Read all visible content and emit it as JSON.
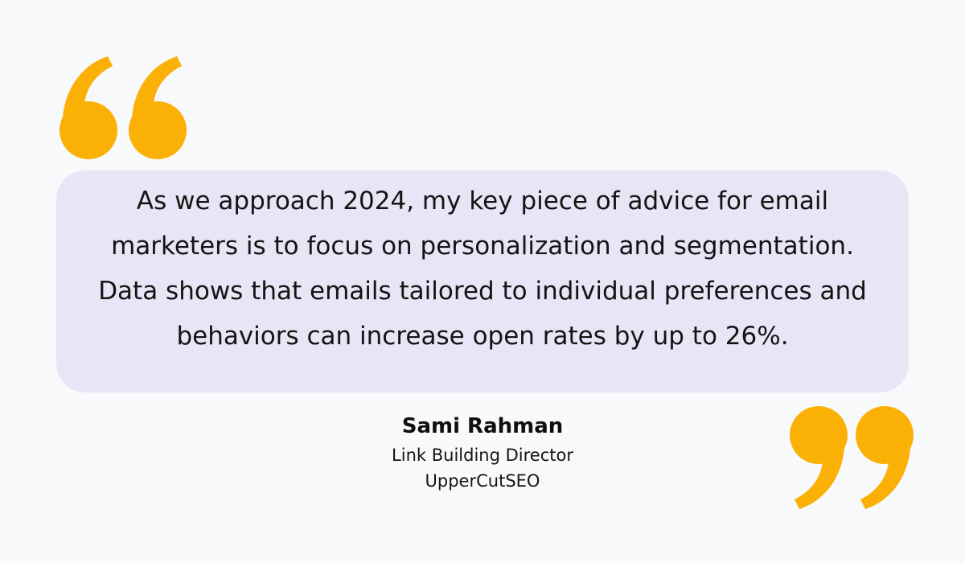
{
  "quote": {
    "text": "As we approach 2024, my key piece of advice for email marketers is to focus on personalization and segmentation. Data shows that emails tailored to individual preferences and behaviors can increase open rates by up to 26%."
  },
  "author": {
    "name": "Sami Rahman",
    "role": "Link Building Director",
    "company": "UpperCutSEO"
  },
  "icons": {
    "open": "opening-quotation-mark-icon",
    "close": "closing-quotation-mark-icon"
  },
  "colors": {
    "background": "#f8f9fb",
    "quote_box": "#e6e6f6",
    "accent": "#fbb005",
    "text": "#141414"
  }
}
